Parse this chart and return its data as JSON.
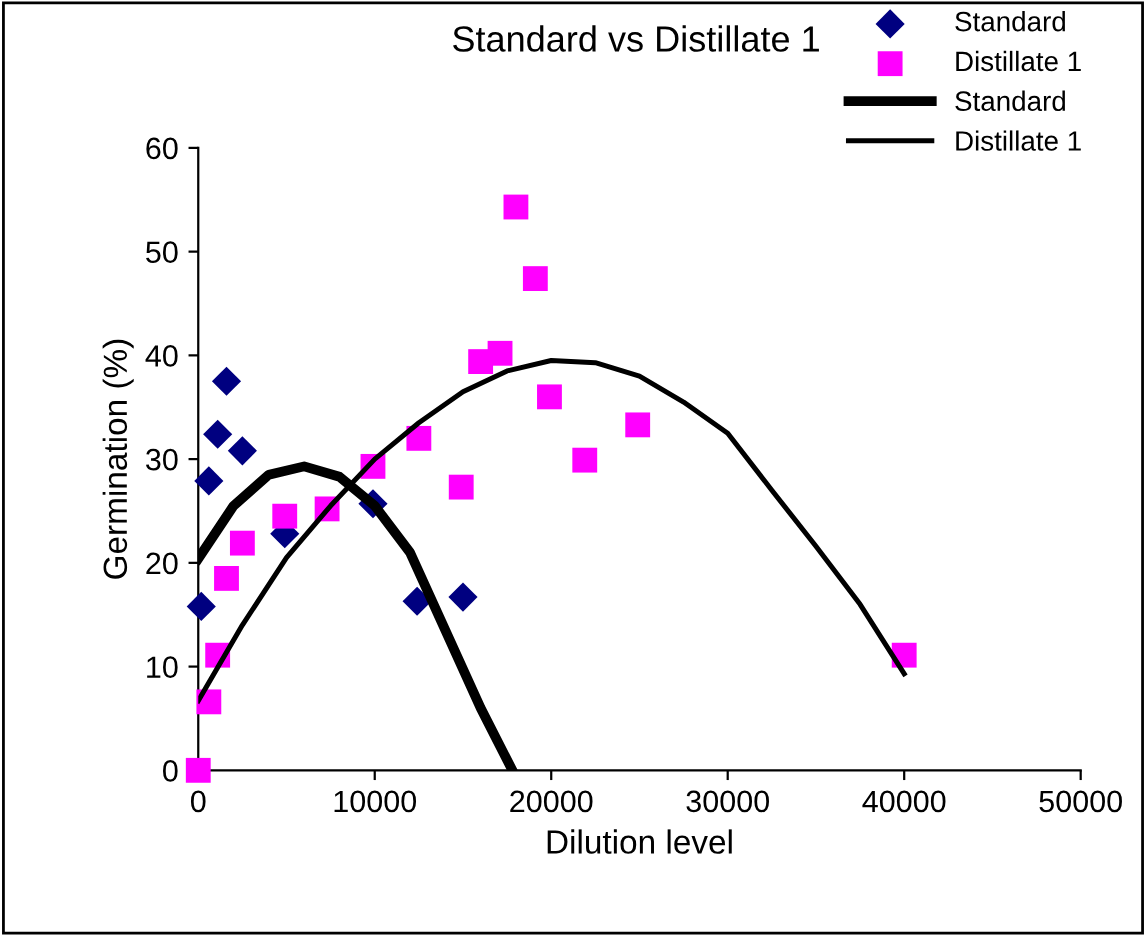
{
  "chart_data": {
    "type": "scatter",
    "title": "Standard vs Distillate 1",
    "xlabel": "Dilution level",
    "ylabel": "Germination (%)",
    "xlim": [
      0,
      50000
    ],
    "xticks": [
      0,
      10000,
      20000,
      30000,
      40000,
      50000
    ],
    "ylim": [
      0,
      60
    ],
    "yticks": [
      0,
      10,
      20,
      30,
      40,
      50,
      60
    ],
    "grid": false,
    "legend": "top right",
    "series": [
      {
        "name": "Standard",
        "marker": "diamond",
        "color": "#000080",
        "x": [
          170,
          600,
          1100,
          1600,
          2500,
          4900,
          9900,
          12400,
          15000
        ],
        "values": [
          15.8,
          27.9,
          32.4,
          37.5,
          30.8,
          22.8,
          25.7,
          16.3,
          16.7
        ]
      },
      {
        "name": "Distillate 1",
        "marker": "square",
        "color": "#ff00ff",
        "x": [
          0,
          600,
          1100,
          1600,
          2500,
          4900,
          7300,
          9900,
          12500,
          14900,
          16000,
          17100,
          18000,
          19100,
          19900,
          21900,
          24900,
          40000
        ],
        "values": [
          0,
          6.6,
          11.1,
          18.5,
          21.9,
          24.5,
          25.2,
          29.3,
          32,
          27.3,
          39.4,
          40.2,
          54.3,
          47.4,
          36,
          29.9,
          33.3,
          11.1
        ]
      },
      {
        "name": "Standard",
        "type": "line",
        "marker": "none",
        "line_style": "solid",
        "color": "#000000",
        "x": [
          0,
          2000,
          4000,
          6000,
          8000,
          10000,
          12000,
          14000,
          16000,
          17800
        ],
        "values": [
          20.4,
          25.5,
          28.5,
          29.3,
          28.3,
          25.5,
          21,
          13.5,
          6,
          0
        ]
      },
      {
        "name": "Distillate 1",
        "type": "line",
        "marker": "none",
        "line_style": "solid",
        "color": "#000000",
        "x": [
          0,
          2500,
          5000,
          7500,
          10000,
          12500,
          15000,
          17500,
          20000,
          22500,
          25000,
          27500,
          30000,
          32500,
          35000,
          37500,
          40000
        ],
        "values": [
          6.7,
          14,
          20.5,
          25.5,
          30,
          33.5,
          36.5,
          38.5,
          39.5,
          39.3,
          38,
          35.5,
          32.5,
          27,
          21.6,
          16,
          9.3
        ]
      }
    ]
  }
}
